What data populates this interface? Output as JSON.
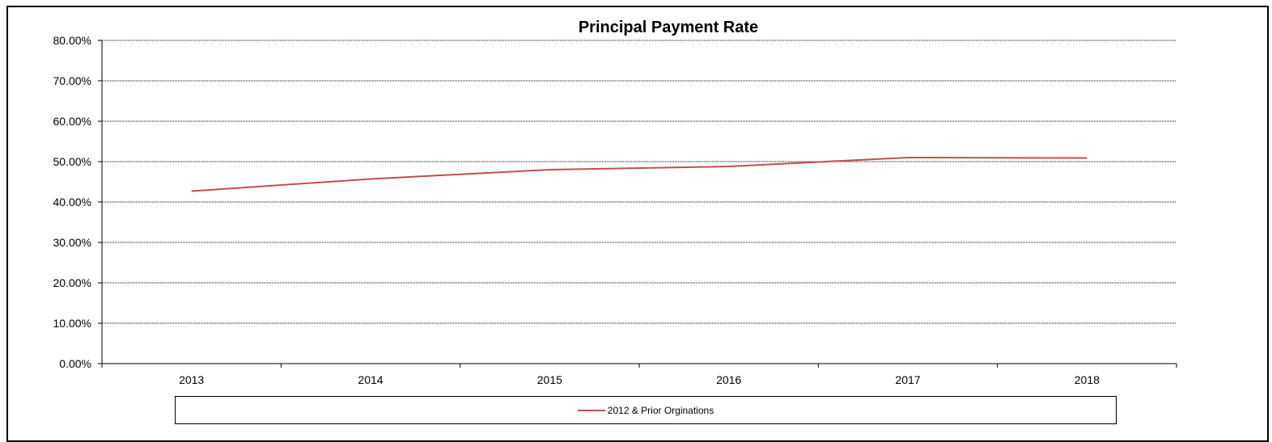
{
  "chart_data": {
    "type": "line",
    "title": "Principal Payment Rate",
    "xlabel": "",
    "ylabel": "",
    "categories": [
      "2013",
      "2014",
      "2015",
      "2016",
      "2017",
      "2018"
    ],
    "ylim": [
      0,
      0.8
    ],
    "y_ticks": [
      0,
      0.1,
      0.2,
      0.3,
      0.4,
      0.5,
      0.6,
      0.7,
      0.8
    ],
    "y_tick_labels": [
      "0.00%",
      "10.00%",
      "20.00%",
      "30.00%",
      "40.00%",
      "50.00%",
      "60.00%",
      "70.00%",
      "80.00%"
    ],
    "grid": true,
    "legend_position": "bottom",
    "series": [
      {
        "name": "2012 & Prior Orginations",
        "color": "#c0504d",
        "values": [
          0.427,
          0.457,
          0.48,
          0.488,
          0.51,
          0.509
        ]
      }
    ]
  }
}
